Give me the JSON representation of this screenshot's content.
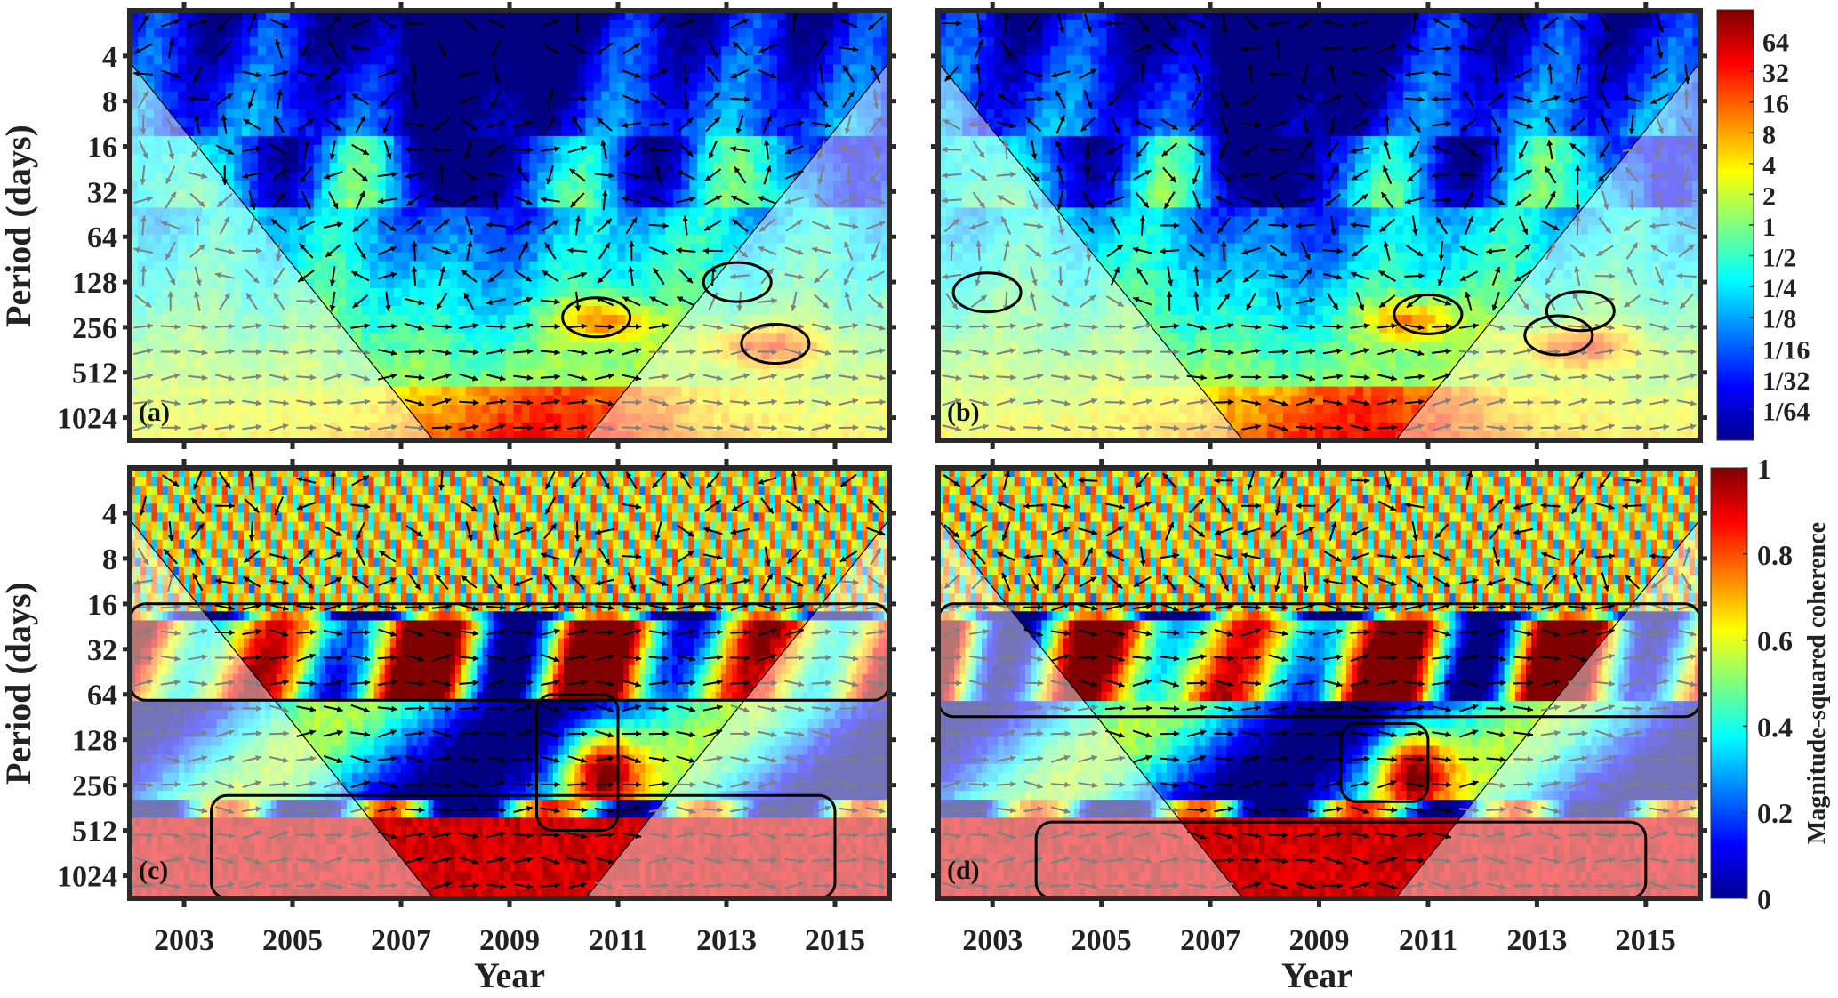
{
  "chart_data": [
    {
      "id": "a",
      "type": "heatmap",
      "title": "",
      "panel_label": "(a)",
      "kind": "cross-wavelet power",
      "xlabel": "",
      "ylabel": "Period (days)",
      "xlim": [
        2002,
        2016
      ],
      "ylim_period_days": [
        2,
        1448
      ],
      "x_ticks": [
        2003,
        2005,
        2007,
        2009,
        2011,
        2013,
        2015
      ],
      "y_ticks": [
        4,
        8,
        16,
        32,
        64,
        128,
        256,
        512,
        1024
      ],
      "significant_regions": [
        {
          "year_center": 2010.6,
          "period_center": 220,
          "note": "closed contour"
        },
        {
          "year_center": 2013.9,
          "period_center": 330,
          "note": "closed contour"
        },
        {
          "year_center": 2013.2,
          "period_center": 128,
          "note": "small closed contour"
        }
      ],
      "colorbar": "power"
    },
    {
      "id": "b",
      "type": "heatmap",
      "title": "",
      "panel_label": "(b)",
      "kind": "cross-wavelet power",
      "xlabel": "",
      "ylabel": "",
      "xlim": [
        2002,
        2016
      ],
      "ylim_period_days": [
        2,
        1448
      ],
      "x_ticks": [
        2003,
        2005,
        2007,
        2009,
        2011,
        2013,
        2015
      ],
      "y_ticks": [
        4,
        8,
        16,
        32,
        64,
        128,
        256,
        512,
        1024
      ],
      "significant_regions": [
        {
          "year_center": 2011.0,
          "period_center": 210,
          "note": "closed contour"
        },
        {
          "year_center": 2013.8,
          "period_center": 200,
          "note": "closed contour"
        },
        {
          "year_center": 2013.4,
          "period_center": 290,
          "note": "small closed contour"
        },
        {
          "year_center": 2002.9,
          "period_center": 150,
          "note": "small closed contour"
        }
      ],
      "colorbar": "power"
    },
    {
      "id": "c",
      "type": "heatmap",
      "title": "",
      "panel_label": "(c)",
      "kind": "wavelet coherence",
      "xlabel": "Year",
      "ylabel": "Period (days)",
      "xlim": [
        2002,
        2016
      ],
      "ylim_period_days": [
        2,
        1448
      ],
      "x_ticks": [
        2003,
        2005,
        2007,
        2009,
        2011,
        2013,
        2015
      ],
      "y_ticks": [
        4,
        8,
        16,
        32,
        64,
        128,
        256,
        512,
        1024
      ],
      "significant_regions": [
        {
          "year_start": 2002.0,
          "year_end": 2016.0,
          "period_min": 16,
          "period_max": 70,
          "note": "broad coherent band"
        },
        {
          "year_start": 2009.5,
          "year_end": 2011.0,
          "period_min": 64,
          "period_max": 512,
          "note": "vertical coherent plume"
        },
        {
          "year_start": 2003.5,
          "year_end": 2015.0,
          "period_min": 300,
          "period_max": 1448,
          "note": "long-period coherent region"
        }
      ],
      "colorbar": "coherence"
    },
    {
      "id": "d",
      "type": "heatmap",
      "title": "",
      "panel_label": "(d)",
      "kind": "wavelet coherence",
      "xlabel": "Year",
      "ylabel": "",
      "xlim": [
        2002,
        2016
      ],
      "ylim_period_days": [
        2,
        1448
      ],
      "x_ticks": [
        2003,
        2005,
        2007,
        2009,
        2011,
        2013,
        2015
      ],
      "y_ticks": [
        4,
        8,
        16,
        32,
        64,
        128,
        256,
        512,
        1024
      ],
      "significant_regions": [
        {
          "year_start": 2002.0,
          "year_end": 2016.0,
          "period_min": 16,
          "period_max": 90,
          "note": "fragmented coherent patches"
        },
        {
          "year_start": 2009.4,
          "year_end": 2011.0,
          "period_min": 100,
          "period_max": 330,
          "note": "coherent block"
        },
        {
          "year_start": 2003.8,
          "year_end": 2015.0,
          "period_min": 450,
          "period_max": 1448,
          "note": "long-period coherent region"
        }
      ],
      "colorbar": "coherence"
    }
  ],
  "colorbars": {
    "power": {
      "scale": "log2",
      "tick_labels": [
        "64",
        "32",
        "16",
        "8",
        "4",
        "2",
        "1",
        "1/2",
        "1/4",
        "1/8",
        "1/16",
        "1/32",
        "1/64"
      ],
      "tick_values": [
        64,
        32,
        16,
        8,
        4,
        2,
        1,
        0.5,
        0.25,
        0.125,
        0.0625,
        0.03125,
        0.015625
      ],
      "range": [
        0.0078125,
        128
      ],
      "colormap": "jet"
    },
    "coherence": {
      "label": "Magnitude-squared coherence",
      "tick_labels": [
        "1",
        "0.8",
        "0.6",
        "0.4",
        "0.2",
        "0"
      ],
      "tick_values": [
        1,
        0.8,
        0.6,
        0.4,
        0.2,
        0
      ],
      "range": [
        0,
        1
      ],
      "colormap": "jet"
    }
  },
  "axes": {
    "ylabel": "Period (days)",
    "xlabel": "Year",
    "x_tick_labels": [
      "2003",
      "2005",
      "2007",
      "2009",
      "2011",
      "2013",
      "2015"
    ],
    "y_tick_labels": [
      "4",
      "8",
      "16",
      "32",
      "64",
      "128",
      "256",
      "512",
      "1024"
    ]
  },
  "colors": {
    "frame": "#2a2a2a",
    "coi_overlay": "#ffffff",
    "arrow_inside": "#000000",
    "arrow_outside": "#808080"
  }
}
